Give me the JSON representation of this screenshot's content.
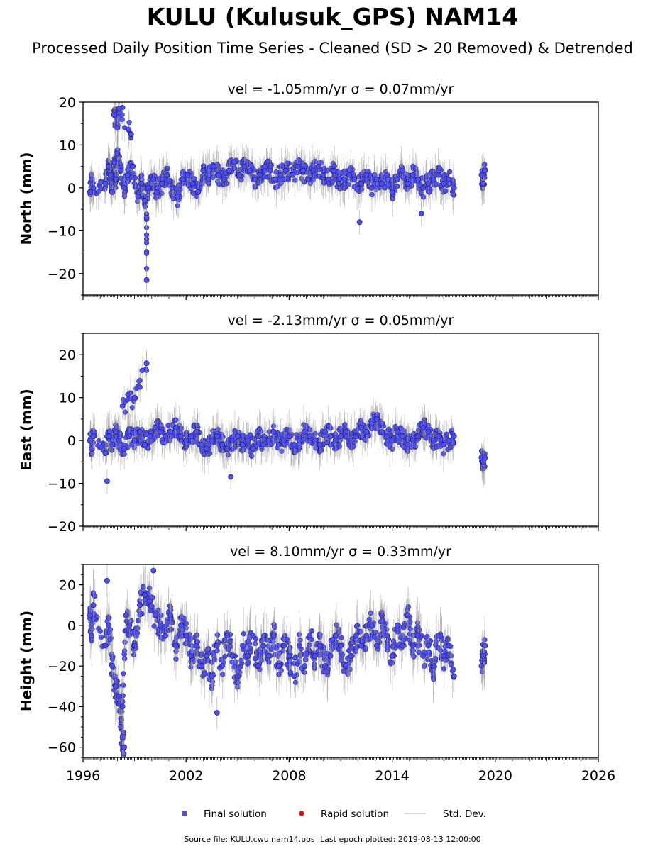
{
  "figure": {
    "title": "KULU (Kulusuk_GPS) NAM14",
    "subtitle": "Processed Daily Position Time Series - Cleaned (SD > 20 Removed) & Detrended",
    "source_label": "Source file: KULU.cwu.nam14.pos",
    "last_epoch_label": "Last epoch plotted: 2019-08-13 12:00:00"
  },
  "legend": {
    "placement": "bottom-center",
    "items": [
      {
        "label": "Final solution",
        "color": "#4b4bff",
        "kind": "dot"
      },
      {
        "label": "Rapid solution",
        "color": "#e01010",
        "kind": "dot"
      },
      {
        "label": "Std. Dev.",
        "color": "#c8c8c8",
        "kind": "line"
      }
    ]
  },
  "colors": {
    "final": "#4b4bff",
    "edge": "#1a1a3a",
    "stddev": "#9a9a9a"
  },
  "chart_data": [
    {
      "type": "scatter",
      "title": "vel = -1.05mm/yr   σ = 0.07mm/yr",
      "ylabel": "North (mm)",
      "xlim": [
        1996,
        2026
      ],
      "ylim": [
        -25,
        20
      ],
      "yticks": [
        -20,
        -10,
        0,
        10,
        20
      ],
      "grid": false,
      "series": [
        {
          "name": "Final solution",
          "x": [
            1996.4,
            1996.5,
            1996.6,
            1997.3,
            1997.5,
            1997.6,
            1997.7,
            1997.8,
            1997.9,
            1998.0,
            1998.2,
            1998.4,
            1998.6,
            1998.9,
            1999.2,
            1999.4,
            1999.6,
            1999.8,
            2000.1,
            2000.3,
            2000.6,
            2000.9,
            2001.2,
            2001.5,
            2001.8,
            2002.1,
            2002.4,
            2002.7,
            2003.0,
            2003.3,
            2003.6,
            2003.9,
            2004.2,
            2004.5,
            2004.8,
            2005.1,
            2005.4,
            2005.7,
            2006.0,
            2006.3,
            2006.6,
            2006.9,
            2007.2,
            2007.5,
            2007.8,
            2008.2,
            2008.5,
            2008.8,
            2009.1,
            2009.4,
            2009.7,
            2010.0,
            2010.3,
            2010.6,
            2010.9,
            2011.2,
            2011.5,
            2011.8,
            2012.2,
            2012.5,
            2012.8,
            2013.1,
            2013.4,
            2013.7,
            2014.0,
            2014.3,
            2014.6,
            2014.9,
            2015.2,
            2015.5,
            2015.8,
            2016.1,
            2016.4,
            2016.7,
            2017.0,
            2017.3,
            2017.6,
            2019.2,
            2019.3,
            2019.4,
            1997.8,
            1998.0,
            1998.1,
            1998.8,
            1999.7,
            1999.7,
            2012.1,
            2015.7
          ],
          "y": [
            -1,
            2,
            0,
            1,
            5,
            3,
            -1,
            6,
            2,
            8,
            4,
            0,
            3,
            5,
            -2,
            1,
            -3,
            0,
            2,
            -1,
            1,
            3,
            0,
            -2,
            2,
            3,
            1,
            -1,
            4,
            2,
            5,
            3,
            2,
            4,
            6,
            3,
            5,
            4,
            2,
            3,
            5,
            4,
            2,
            3,
            4,
            3,
            5,
            4,
            2,
            4,
            5,
            3,
            2,
            4,
            1,
            2,
            3,
            2,
            1,
            3,
            0,
            2,
            1,
            3,
            -1,
            2,
            4,
            1,
            3,
            2,
            0,
            1,
            2,
            3,
            1,
            2,
            0,
            3,
            1,
            4,
            17,
            14,
            18.5,
            12.5,
            -21.5,
            -7,
            -8,
            -6
          ]
        },
        {
          "name": "Std. Dev.",
          "x": [],
          "y": []
        }
      ]
    },
    {
      "type": "scatter",
      "title": "vel = -2.13mm/yr   σ = 0.05mm/yr",
      "ylabel": "East (mm)",
      "xlim": [
        1996,
        2026
      ],
      "ylim": [
        -20,
        25
      ],
      "yticks": [
        -20,
        -10,
        0,
        10,
        20
      ],
      "grid": false,
      "series": [
        {
          "name": "Final solution",
          "x": [
            1996.4,
            1996.5,
            1996.6,
            1997.3,
            1997.5,
            1997.7,
            1997.9,
            1998.1,
            1998.4,
            1998.7,
            1999.0,
            1999.3,
            1999.6,
            1999.9,
            2000.2,
            2000.5,
            2000.8,
            2001.1,
            2001.4,
            2001.7,
            2002.0,
            2002.3,
            2002.6,
            2002.9,
            2003.2,
            2003.5,
            2003.8,
            2004.1,
            2004.4,
            2004.7,
            2005.0,
            2005.3,
            2005.6,
            2005.9,
            2006.2,
            2006.5,
            2006.8,
            2007.1,
            2007.4,
            2007.7,
            2008.0,
            2008.3,
            2008.6,
            2008.9,
            2009.2,
            2009.5,
            2009.8,
            2010.1,
            2010.4,
            2010.7,
            2011.0,
            2011.3,
            2011.6,
            2011.9,
            2012.2,
            2012.5,
            2012.8,
            2013.1,
            2013.4,
            2013.7,
            2014.0,
            2014.3,
            2014.6,
            2014.9,
            2015.2,
            2015.5,
            2015.8,
            2016.1,
            2016.4,
            2016.7,
            2017.0,
            2017.3,
            2017.6,
            2019.2,
            2019.3,
            2019.4,
            1998.3,
            1999.0,
            1999.7,
            1997.4,
            2004.6
          ],
          "y": [
            0,
            -2,
            1,
            -3,
            1,
            -1,
            2,
            0,
            -2,
            1,
            0,
            2,
            -1,
            1,
            3,
            2,
            1,
            2,
            3,
            1,
            0,
            1,
            2,
            -1,
            -2,
            0,
            1,
            -1,
            -2,
            0,
            1,
            -1,
            0,
            -2,
            1,
            -1,
            0,
            2,
            -1,
            0,
            1,
            -1,
            0,
            2,
            1,
            0,
            -1,
            2,
            1,
            0,
            1,
            2,
            0,
            1,
            3,
            2,
            4,
            5,
            2,
            1,
            0,
            2,
            1,
            -1,
            0,
            1,
            3,
            2,
            0,
            1,
            -1,
            0,
            1,
            -4,
            -5,
            -4,
            8,
            10,
            18,
            -9.5,
            -8.5
          ]
        },
        {
          "name": "Std. Dev.",
          "x": [],
          "y": []
        }
      ]
    },
    {
      "type": "scatter",
      "title": "vel = 8.10mm/yr   σ = 0.33mm/yr",
      "ylabel": "Height (mm)",
      "xlim": [
        1996,
        2026
      ],
      "ylim": [
        -65,
        30
      ],
      "yticks": [
        -60,
        -40,
        -20,
        0,
        20
      ],
      "xticks": [
        1996,
        2002,
        2008,
        2014,
        2020,
        2026
      ],
      "grid": false,
      "series": [
        {
          "name": "Final solution",
          "x": [
            1996.4,
            1996.5,
            1996.6,
            1997.3,
            1997.5,
            1997.7,
            1997.9,
            1998.1,
            1998.3,
            1998.5,
            1998.7,
            1999.0,
            1999.3,
            1999.6,
            1999.9,
            2000.2,
            2000.5,
            2000.8,
            2001.1,
            2001.4,
            2001.7,
            2002.0,
            2002.3,
            2002.6,
            2002.9,
            2003.2,
            2003.5,
            2003.8,
            2004.1,
            2004.4,
            2004.7,
            2005.0,
            2005.3,
            2005.6,
            2005.9,
            2006.2,
            2006.5,
            2006.8,
            2007.1,
            2007.4,
            2007.7,
            2008.0,
            2008.3,
            2008.6,
            2008.9,
            2009.2,
            2009.5,
            2009.8,
            2010.1,
            2010.4,
            2010.7,
            2011.0,
            2011.3,
            2011.6,
            2011.9,
            2012.2,
            2012.5,
            2012.8,
            2013.1,
            2013.4,
            2013.7,
            2014.0,
            2014.3,
            2014.6,
            2014.9,
            2015.2,
            2015.5,
            2015.8,
            2016.1,
            2016.4,
            2016.7,
            2017.0,
            2017.3,
            2017.6,
            2019.2,
            2019.3,
            2019.4,
            1998.2,
            1998.3,
            1998.4,
            1997.4,
            2000.1,
            2003.8
          ],
          "y": [
            5,
            -5,
            10,
            -10,
            0,
            -20,
            -30,
            -35,
            -40,
            5,
            0,
            -10,
            10,
            15,
            12,
            5,
            0,
            -5,
            5,
            -10,
            0,
            -5,
            -15,
            -10,
            -20,
            -15,
            -25,
            -10,
            -20,
            -5,
            -15,
            -25,
            -10,
            -15,
            -5,
            -20,
            -10,
            -15,
            -5,
            -20,
            -10,
            -15,
            -25,
            -10,
            -20,
            -5,
            -15,
            -10,
            -20,
            -15,
            -5,
            -10,
            -20,
            -15,
            -5,
            -10,
            -5,
            0,
            -10,
            5,
            -5,
            -15,
            0,
            -10,
            5,
            -10,
            -5,
            -15,
            -10,
            -20,
            -5,
            -15,
            -10,
            -25,
            -20,
            -15,
            -10,
            -50,
            -55,
            -60,
            22,
            27,
            -43
          ]
        },
        {
          "name": "Std. Dev.",
          "x": [],
          "y": []
        }
      ]
    }
  ]
}
